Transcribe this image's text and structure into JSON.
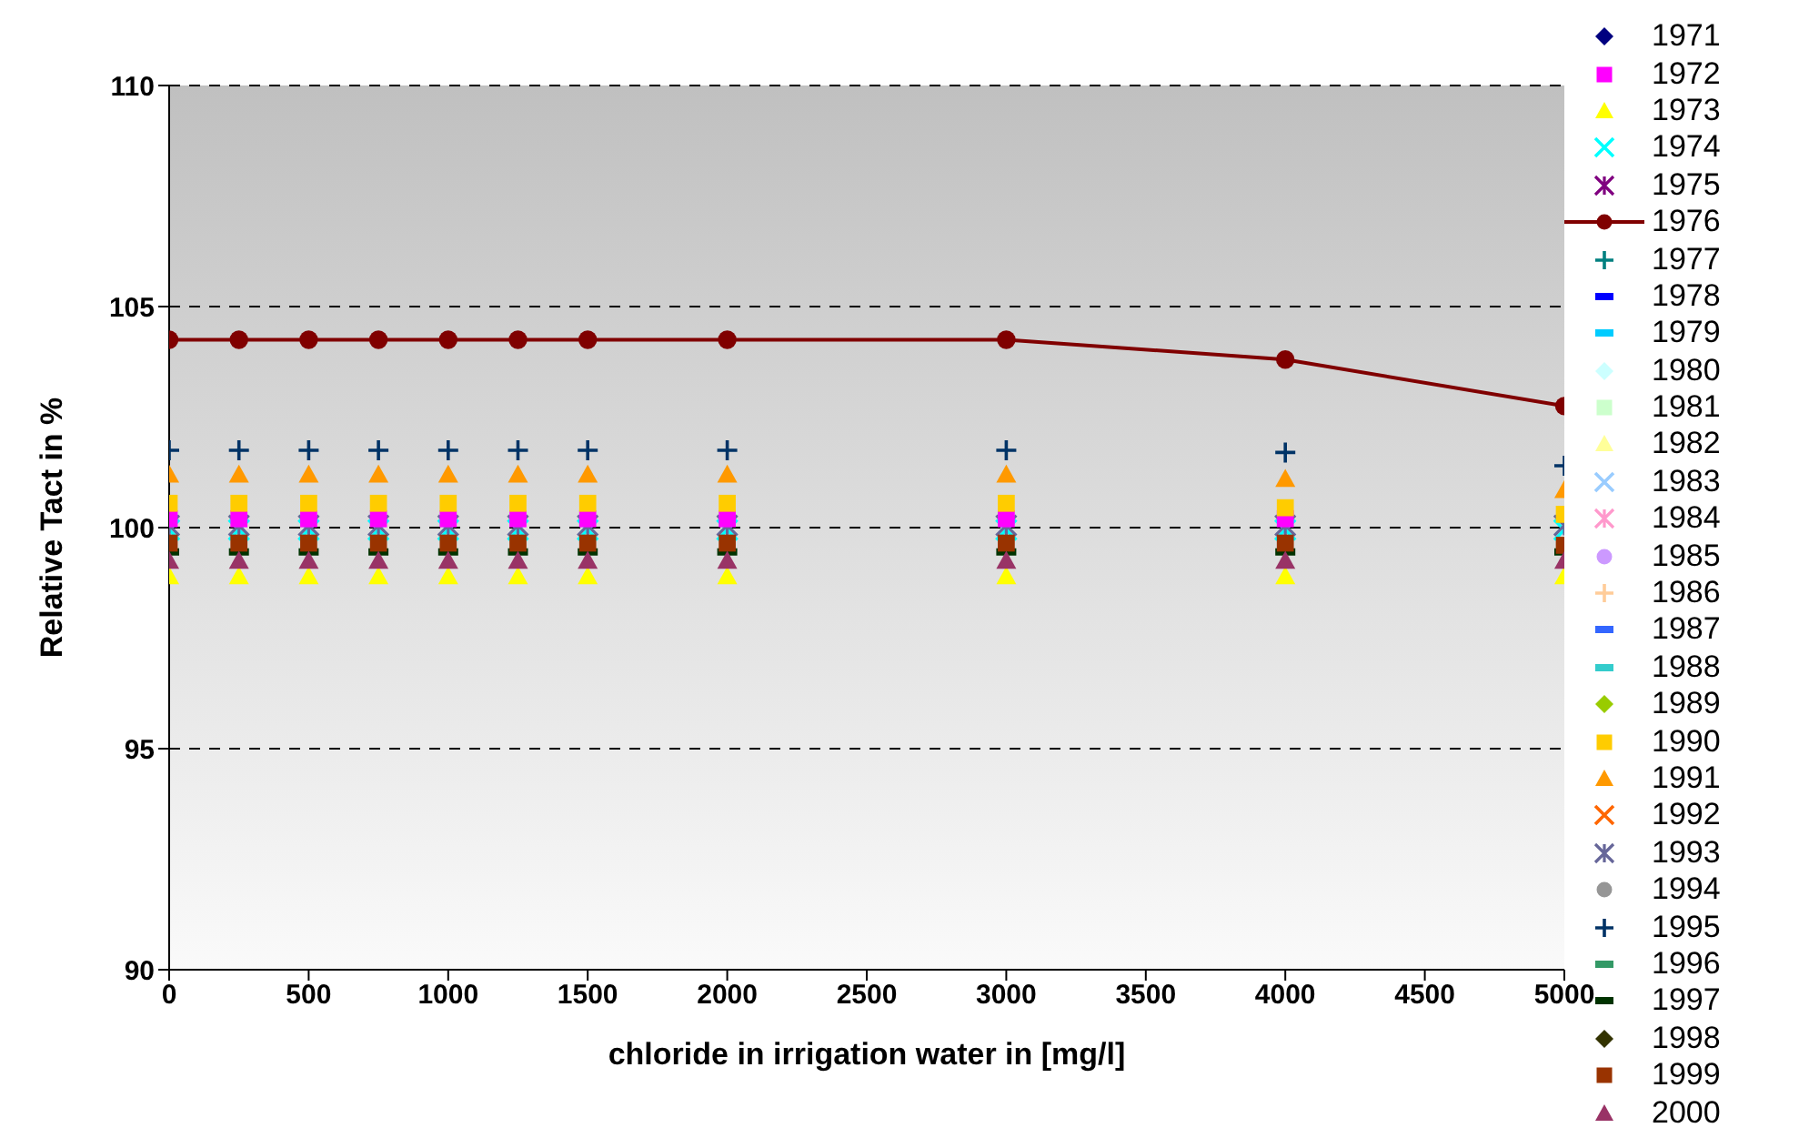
{
  "chart_data": {
    "type": "scatter",
    "xlabel": "chloride in irrigation water in [mg/l]",
    "ylabel": "Relative Tact in %",
    "x": [
      0,
      250,
      500,
      750,
      1000,
      1250,
      1500,
      2000,
      3000,
      4000,
      5000
    ],
    "xlim": [
      0,
      5000
    ],
    "xticks": [
      0,
      500,
      1000,
      1500,
      2000,
      2500,
      3000,
      3500,
      4000,
      4500,
      5000
    ],
    "ylim": [
      90,
      110
    ],
    "yticks": [
      90,
      95,
      100,
      105,
      110
    ],
    "grid": "y",
    "legend": "right",
    "series": [
      {
        "name": "1971",
        "color": "#000080",
        "marker": "diamond",
        "values": [
          null,
          null,
          null,
          null,
          null,
          null,
          null,
          null,
          null,
          null,
          null
        ]
      },
      {
        "name": "1972",
        "color": "#ff00ff",
        "marker": "square",
        "values": [
          100.2,
          100.2,
          100.2,
          100.2,
          100.2,
          100.2,
          100.2,
          100.2,
          100.2,
          100.2,
          null
        ]
      },
      {
        "name": "1973",
        "color": "#ffff00",
        "marker": "triangle",
        "values": [
          98.9,
          98.9,
          98.9,
          98.9,
          98.9,
          98.9,
          98.9,
          98.9,
          98.9,
          98.9,
          98.9
        ]
      },
      {
        "name": "1974",
        "color": "#00ffff",
        "marker": "x",
        "values": [
          99.95,
          99.95,
          99.95,
          99.95,
          99.95,
          99.95,
          99.95,
          99.95,
          99.95,
          99.95,
          99.95
        ]
      },
      {
        "name": "1975",
        "color": "#800080",
        "marker": "cross",
        "values": [
          null,
          null,
          null,
          null,
          null,
          null,
          null,
          null,
          null,
          null,
          null
        ]
      },
      {
        "name": "1976",
        "color": "#800000",
        "marker": "circle",
        "type": "line",
        "line_style": "solid",
        "values": [
          104.25,
          104.25,
          104.25,
          104.25,
          104.25,
          104.25,
          104.25,
          104.25,
          104.25,
          103.8,
          102.75
        ]
      },
      {
        "name": "1977",
        "color": "#008080",
        "marker": "plus",
        "values": [
          null,
          null,
          null,
          null,
          null,
          null,
          null,
          null,
          null,
          null,
          null
        ]
      },
      {
        "name": "1978",
        "color": "#0000ff",
        "values": [
          null,
          null,
          null,
          null,
          null,
          null,
          null,
          null,
          null,
          null,
          null
        ]
      },
      {
        "name": "1979",
        "color": "#00ccff",
        "values": [
          null,
          null,
          null,
          null,
          null,
          null,
          null,
          null,
          null,
          null,
          null
        ]
      },
      {
        "name": "1980",
        "color": "#ccffff",
        "marker": "diamond",
        "values": [
          null,
          null,
          null,
          null,
          null,
          null,
          null,
          null,
          null,
          null,
          null
        ]
      },
      {
        "name": "1981",
        "color": "#ccffcc",
        "marker": "square",
        "values": [
          null,
          null,
          null,
          null,
          null,
          null,
          null,
          null,
          null,
          null,
          null
        ]
      },
      {
        "name": "1982",
        "color": "#ffff99",
        "marker": "triangle",
        "values": [
          null,
          null,
          null,
          null,
          null,
          null,
          null,
          null,
          null,
          null,
          null
        ]
      },
      {
        "name": "1983",
        "color": "#99ccff",
        "marker": "x",
        "values": [
          null,
          null,
          null,
          null,
          null,
          null,
          null,
          null,
          null,
          null,
          null
        ]
      },
      {
        "name": "1984",
        "color": "#ff99cc",
        "marker": "cross",
        "values": [
          null,
          null,
          null,
          null,
          null,
          null,
          null,
          null,
          null,
          null,
          null
        ]
      },
      {
        "name": "1985",
        "color": "#cc99ff",
        "marker": "circle",
        "values": [
          null,
          null,
          null,
          null,
          null,
          null,
          null,
          null,
          null,
          null,
          null
        ]
      },
      {
        "name": "1986",
        "color": "#ffcc99",
        "marker": "plus",
        "values": [
          null,
          null,
          null,
          null,
          null,
          null,
          null,
          null,
          null,
          null,
          null
        ]
      },
      {
        "name": "1987",
        "color": "#3366ff",
        "values": [
          null,
          null,
          null,
          null,
          null,
          null,
          null,
          null,
          null,
          null,
          null
        ]
      },
      {
        "name": "1988",
        "color": "#33cccc",
        "values": [
          null,
          null,
          null,
          null,
          null,
          null,
          null,
          null,
          null,
          null,
          null
        ]
      },
      {
        "name": "1989",
        "color": "#99cc00",
        "marker": "diamond",
        "values": [
          null,
          null,
          null,
          null,
          null,
          null,
          null,
          null,
          null,
          null,
          null
        ]
      },
      {
        "name": "1990",
        "color": "#ffcc00",
        "marker": "square",
        "values": [
          100.55,
          100.55,
          100.55,
          100.55,
          100.55,
          100.55,
          100.55,
          100.55,
          100.55,
          100.45,
          100.3
        ]
      },
      {
        "name": "1991",
        "color": "#ff9900",
        "marker": "triangle",
        "values": [
          101.2,
          101.2,
          101.2,
          101.2,
          101.2,
          101.2,
          101.2,
          101.2,
          101.2,
          101.1,
          100.85
        ]
      },
      {
        "name": "1992",
        "color": "#ff6600",
        "marker": "x",
        "values": [
          null,
          null,
          null,
          null,
          null,
          null,
          null,
          null,
          null,
          null,
          null
        ]
      },
      {
        "name": "1993",
        "color": "#666699",
        "marker": "cross",
        "values": [
          100.05,
          100.05,
          100.05,
          100.05,
          100.05,
          100.05,
          100.05,
          100.05,
          100.05,
          100.05,
          100.05
        ]
      },
      {
        "name": "1994",
        "color": "#969696",
        "marker": "circle",
        "values": [
          null,
          null,
          null,
          null,
          null,
          null,
          null,
          null,
          null,
          null,
          null
        ]
      },
      {
        "name": "1995",
        "color": "#003366",
        "marker": "plus",
        "values": [
          101.75,
          101.75,
          101.75,
          101.75,
          101.75,
          101.75,
          101.75,
          101.75,
          101.75,
          101.7,
          101.4
        ]
      },
      {
        "name": "1996",
        "color": "#339966",
        "values": [
          null,
          null,
          null,
          null,
          null,
          null,
          null,
          null,
          null,
          null,
          null
        ]
      },
      {
        "name": "1997",
        "color": "#003300",
        "values": [
          99.45,
          99.45,
          99.45,
          99.45,
          99.45,
          99.45,
          99.45,
          99.45,
          99.45,
          99.45,
          99.45
        ]
      },
      {
        "name": "1998",
        "color": "#333300",
        "marker": "diamond",
        "values": [
          null,
          null,
          null,
          null,
          null,
          null,
          null,
          null,
          null,
          null,
          null
        ]
      },
      {
        "name": "1999",
        "color": "#993300",
        "marker": "square",
        "values": [
          99.65,
          99.65,
          99.65,
          99.65,
          99.65,
          99.65,
          99.65,
          99.65,
          99.65,
          99.65,
          99.6
        ]
      },
      {
        "name": "2000",
        "color": "#993366",
        "marker": "triangle",
        "values": [
          99.25,
          99.25,
          99.25,
          99.25,
          99.25,
          99.25,
          99.25,
          99.25,
          99.25,
          99.25,
          99.25
        ]
      }
    ]
  }
}
